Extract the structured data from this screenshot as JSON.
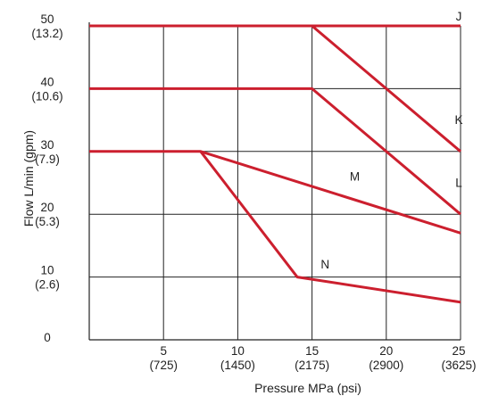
{
  "chart_data": {
    "type": "line",
    "xlabel": "Pressure MPa (psi)",
    "ylabel": "Flow L/min (gpm)",
    "xlim": [
      0,
      25
    ],
    "ylim": [
      0,
      50
    ],
    "grid": true,
    "x_ticks": [
      {
        "value": 5,
        "label": "5",
        "sublabel": "(725)"
      },
      {
        "value": 10,
        "label": "10",
        "sublabel": "(1450)"
      },
      {
        "value": 15,
        "label": "15",
        "sublabel": "(2175)"
      },
      {
        "value": 20,
        "label": "20",
        "sublabel": "(2900)"
      },
      {
        "value": 25,
        "label": "25",
        "sublabel": "(3625)"
      }
    ],
    "y_ticks": [
      {
        "value": 0,
        "label": "0",
        "sublabel": ""
      },
      {
        "value": 10,
        "label": "10",
        "sublabel": "(2.6)"
      },
      {
        "value": 20,
        "label": "20",
        "sublabel": "(5.3)"
      },
      {
        "value": 30,
        "label": "30",
        "sublabel": "(7.9)"
      },
      {
        "value": 40,
        "label": "40",
        "sublabel": "(10.6)"
      },
      {
        "value": 50,
        "label": "50",
        "sublabel": "(13.2)"
      }
    ],
    "line_color": "#cc1f2e",
    "series": [
      {
        "name": "J",
        "x": [
          0,
          25
        ],
        "y": [
          50,
          50
        ]
      },
      {
        "name": "K",
        "x": [
          0,
          15,
          25
        ],
        "y": [
          50,
          50,
          30
        ]
      },
      {
        "name": "L",
        "x": [
          0,
          15,
          25
        ],
        "y": [
          40,
          40,
          20
        ]
      },
      {
        "name": "M",
        "x": [
          0,
          7.5,
          25
        ],
        "y": [
          30,
          30,
          17
        ]
      },
      {
        "name": "N",
        "x": [
          7.5,
          14,
          25
        ],
        "y": [
          30,
          10,
          6
        ]
      }
    ],
    "annotations": [
      {
        "text": "J",
        "x": 25,
        "y": 50
      },
      {
        "text": "K",
        "x": 25,
        "y": 33.5
      },
      {
        "text": "L",
        "x": 25,
        "y": 23.5
      },
      {
        "text": "M",
        "x": 18,
        "y": 24.5
      },
      {
        "text": "N",
        "x": 16,
        "y": 10.5
      }
    ]
  }
}
